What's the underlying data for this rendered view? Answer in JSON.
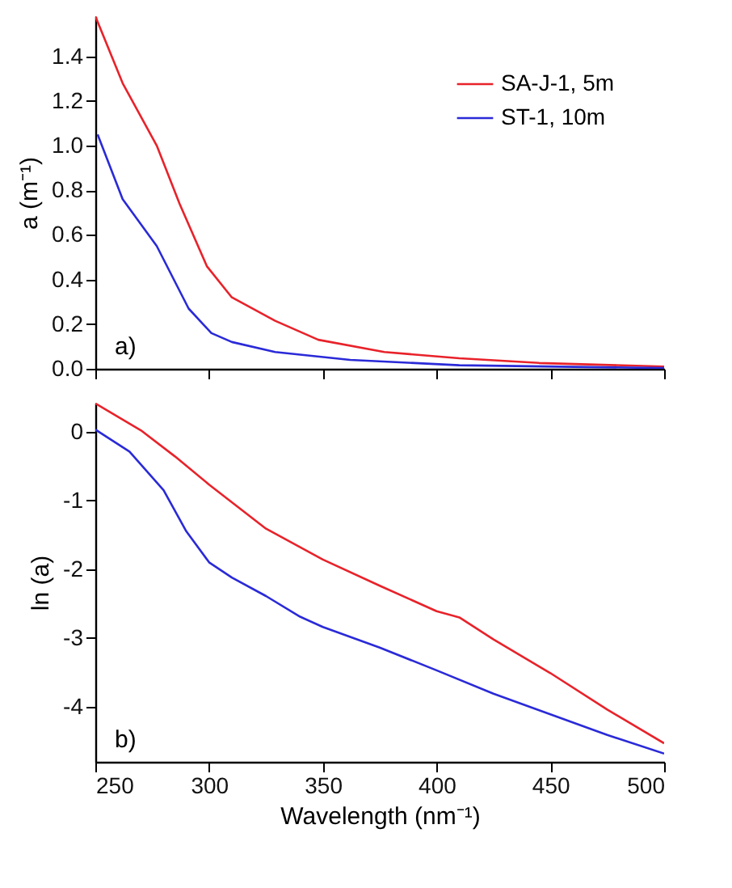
{
  "chart_data": [
    {
      "type": "line",
      "ylabel": "a (m⁻¹)",
      "annotations": [
        "a)"
      ],
      "legend": "top right",
      "grid": false,
      "tick_labels": "y",
      "marker": "none",
      "line_style": "solid",
      "xlim": [
        250,
        500
      ],
      "xticks": [
        250,
        300,
        350,
        400,
        450,
        500
      ],
      "ylim": [
        0,
        1.58
      ],
      "yticks": [
        {
          "value": 0,
          "label": "0.0"
        },
        {
          "value": 0.2,
          "label": "0.2"
        },
        {
          "value": 0.4,
          "label": "0.4"
        },
        {
          "value": 0.6,
          "label": "0.6"
        },
        {
          "value": 0.8,
          "label": "0.8"
        },
        {
          "value": 1,
          "label": "1.0"
        },
        {
          "value": 1.2,
          "label": "1.2"
        },
        {
          "value": 1.4,
          "label": "1.4"
        }
      ],
      "series": [
        {
          "name": "SA-J-1, 5m",
          "color": "#e8222a",
          "x": [
            250,
            262,
            277,
            287,
            299,
            310,
            329,
            348,
            377,
            410,
            445,
            500
          ],
          "values": [
            1.58,
            1.28,
            1.0,
            0.74,
            0.46,
            0.32,
            0.215,
            0.13,
            0.075,
            0.047,
            0.026,
            0.01
          ]
        },
        {
          "name": "ST-1, 10m",
          "color": "#2a2ad8",
          "x": [
            251,
            262,
            277,
            291,
            301,
            310,
            329,
            362,
            410,
            500
          ],
          "values": [
            1.05,
            0.76,
            0.55,
            0.27,
            0.16,
            0.12,
            0.075,
            0.04,
            0.016,
            0.003
          ]
        }
      ]
    },
    {
      "type": "line",
      "xlabel": "Wavelength (nm⁻¹)",
      "ylabel": "ln (a)",
      "annotations": [
        "b)"
      ],
      "grid": false,
      "marker": "none",
      "line_style": "solid",
      "xlim": [
        250,
        500
      ],
      "xticks": [
        250,
        300,
        350,
        400,
        450,
        500
      ],
      "ylim": [
        -4.8,
        0.42
      ],
      "yticks": [
        -4,
        -3,
        -2,
        -1,
        0
      ],
      "series": [
        {
          "color": "#e8222a",
          "x": [
            250,
            270,
            285,
            300,
            325,
            350,
            375,
            400,
            410,
            425,
            450,
            475,
            500
          ],
          "values": [
            0.41,
            0.02,
            -0.36,
            -0.77,
            -1.41,
            -1.86,
            -2.24,
            -2.61,
            -2.7,
            -3.02,
            -3.51,
            -4.04,
            -4.53
          ]
        },
        {
          "color": "#2a2ad8",
          "x": [
            250,
            265,
            280,
            290,
            300,
            310,
            325,
            340,
            350,
            375,
            400,
            425,
            450,
            475,
            500
          ],
          "values": [
            0.03,
            -0.29,
            -0.85,
            -1.45,
            -1.9,
            -2.12,
            -2.39,
            -2.69,
            -2.84,
            -3.14,
            -3.47,
            -3.81,
            -4.11,
            -4.41,
            -4.68
          ]
        }
      ]
    }
  ]
}
